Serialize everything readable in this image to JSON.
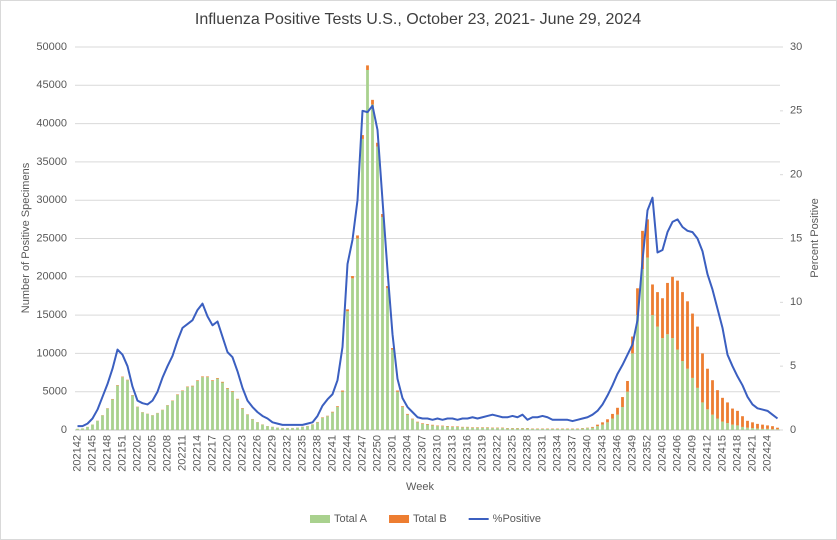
{
  "chart_data": {
    "type": "bar",
    "stacked": true,
    "grid": true,
    "title": "Influenza Positive Tests U.S., October 23, 2021- June 29, 2024",
    "x_label": "Week",
    "y_label": "Number of Positive Specimens",
    "y2_label": "Percent Positive",
    "categories": [
      "202142",
      null,
      null,
      "202145",
      null,
      null,
      "202148",
      null,
      null,
      "202151",
      null,
      null,
      "202202",
      null,
      null,
      "202205",
      null,
      null,
      "202208",
      null,
      null,
      "202211",
      null,
      null,
      "202214",
      null,
      null,
      "202217",
      null,
      null,
      "202220",
      null,
      null,
      "202223",
      null,
      null,
      "202226",
      null,
      null,
      "202229",
      null,
      null,
      "202232",
      null,
      null,
      "202235",
      null,
      null,
      "202238",
      null,
      null,
      "202241",
      null,
      null,
      "202244",
      null,
      null,
      "202247",
      null,
      null,
      "202250",
      null,
      null,
      "202301",
      null,
      null,
      "202304",
      null,
      null,
      "202307",
      null,
      null,
      "202310",
      null,
      null,
      "202313",
      null,
      null,
      "202316",
      null,
      null,
      "202319",
      null,
      null,
      "202322",
      null,
      null,
      "202325",
      null,
      null,
      "202328",
      null,
      null,
      "202331",
      null,
      null,
      "202334",
      null,
      null,
      "202337",
      null,
      null,
      "202340",
      null,
      null,
      "202343",
      null,
      null,
      "202346",
      null,
      null,
      "202349",
      null,
      null,
      "202352",
      null,
      null,
      "202403",
      null,
      null,
      "202406",
      null,
      null,
      "202409",
      null,
      null,
      "202412",
      null,
      null,
      "202415",
      null,
      null,
      "202418",
      null,
      null,
      "202421",
      null,
      null,
      "202424",
      null,
      null
    ],
    "series": [
      {
        "name": "Total A",
        "color": "#a9d18e",
        "values": [
          150,
          200,
          400,
          700,
          1200,
          1900,
          2800,
          4000,
          5800,
          6900,
          6500,
          4500,
          3000,
          2300,
          2100,
          1900,
          2200,
          2600,
          3200,
          3800,
          4600,
          5100,
          5600,
          5700,
          6400,
          6900,
          6900,
          6400,
          6700,
          6200,
          5400,
          5000,
          4000,
          2800,
          2000,
          1400,
          1000,
          700,
          500,
          400,
          300,
          250,
          250,
          250,
          300,
          400,
          500,
          700,
          1000,
          1600,
          1800,
          2300,
          3000,
          5000,
          15500,
          19800,
          25000,
          38000,
          47000,
          42500,
          37000,
          27800,
          18500,
          10500,
          5000,
          3000,
          2000,
          1400,
          1000,
          800,
          700,
          600,
          500,
          500,
          450,
          400,
          400,
          350,
          350,
          300,
          300,
          300,
          300,
          250,
          250,
          250,
          200,
          200,
          200,
          200,
          200,
          150,
          150,
          150,
          150,
          150,
          150,
          150,
          150,
          150,
          150,
          200,
          250,
          300,
          500,
          700,
          1000,
          1500,
          2000,
          3000,
          5000,
          10000,
          15000,
          21000,
          22500,
          15000,
          13500,
          12000,
          12500,
          12000,
          10500,
          9000,
          8000,
          6800,
          5500,
          3600,
          2700,
          2000,
          1500,
          1100,
          900,
          700,
          600,
          400,
          300,
          250,
          200,
          150,
          150,
          100,
          100
        ]
      },
      {
        "name": "Total B",
        "color": "#ed7d31",
        "values": [
          10,
          10,
          10,
          20,
          20,
          30,
          40,
          50,
          60,
          70,
          60,
          50,
          40,
          30,
          30,
          30,
          30,
          40,
          40,
          50,
          60,
          60,
          70,
          80,
          80,
          90,
          90,
          90,
          90,
          90,
          80,
          80,
          70,
          60,
          50,
          40,
          30,
          30,
          20,
          20,
          20,
          20,
          20,
          20,
          20,
          30,
          30,
          40,
          50,
          60,
          60,
          80,
          100,
          150,
          250,
          300,
          400,
          500,
          600,
          600,
          500,
          400,
          300,
          200,
          150,
          100,
          100,
          80,
          80,
          80,
          80,
          80,
          80,
          70,
          70,
          70,
          70,
          60,
          60,
          60,
          60,
          60,
          60,
          60,
          60,
          60,
          50,
          50,
          50,
          50,
          50,
          50,
          50,
          50,
          50,
          50,
          50,
          50,
          50,
          50,
          50,
          50,
          50,
          100,
          200,
          300,
          400,
          600,
          900,
          1300,
          1400,
          2200,
          3500,
          5000,
          5000,
          4000,
          4500,
          5200,
          6700,
          8000,
          9000,
          9000,
          8800,
          8400,
          8000,
          6400,
          5300,
          4500,
          3700,
          3100,
          2700,
          2100,
          1900,
          1400,
          900,
          750,
          600,
          550,
          450,
          400,
          200
        ]
      },
      {
        "name": "%Positive",
        "color": "#3b5fc0",
        "type": "line",
        "axis": "y2",
        "values": [
          0.3,
          0.3,
          0.5,
          0.9,
          1.6,
          2.6,
          3.6,
          4.8,
          6.3,
          5.9,
          5.0,
          3.4,
          2.3,
          2.1,
          2.0,
          2.3,
          3.0,
          4.1,
          5.0,
          5.8,
          7.0,
          8.0,
          8.3,
          8.6,
          9.4,
          9.9,
          8.9,
          8.2,
          8.5,
          7.3,
          6.1,
          5.7,
          4.6,
          3.3,
          2.3,
          1.8,
          1.4,
          1.1,
          0.9,
          0.6,
          0.5,
          0.4,
          0.4,
          0.4,
          0.4,
          0.4,
          0.5,
          0.6,
          1.1,
          1.9,
          2.4,
          2.8,
          3.9,
          6.5,
          13.0,
          14.9,
          18.0,
          25.0,
          24.9,
          25.4,
          23.5,
          18.0,
          12.5,
          7.5,
          4.0,
          2.5,
          1.8,
          1.4,
          1.0,
          0.9,
          0.9,
          0.8,
          0.9,
          0.8,
          0.9,
          0.9,
          0.8,
          0.9,
          0.9,
          1.0,
          0.9,
          1.0,
          1.1,
          1.2,
          1.1,
          1.0,
          1.0,
          1.1,
          1.0,
          1.2,
          0.8,
          1.0,
          1.0,
          1.1,
          1.0,
          0.8,
          0.8,
          0.8,
          0.8,
          0.7,
          0.8,
          0.9,
          1.0,
          1.2,
          1.5,
          2.0,
          2.7,
          3.5,
          4.4,
          5.1,
          5.9,
          6.7,
          8.6,
          13.3,
          17.2,
          18.2,
          13.9,
          14.1,
          15.5,
          16.3,
          16.5,
          15.9,
          15.6,
          15.5,
          15.0,
          14.0,
          12.2,
          11.0,
          9.5,
          8.0,
          5.9,
          5.0,
          4.2,
          3.5,
          2.6,
          2.0,
          1.7,
          1.6,
          1.5,
          1.2,
          0.9
        ]
      }
    ],
    "ylim": [
      0,
      50000
    ],
    "yticks": [
      0,
      5000,
      10000,
      15000,
      20000,
      25000,
      30000,
      35000,
      40000,
      45000,
      50000
    ],
    "y2lim": [
      0,
      30
    ],
    "y2ticks": [
      0,
      5,
      10,
      15,
      20,
      25,
      30
    ]
  }
}
